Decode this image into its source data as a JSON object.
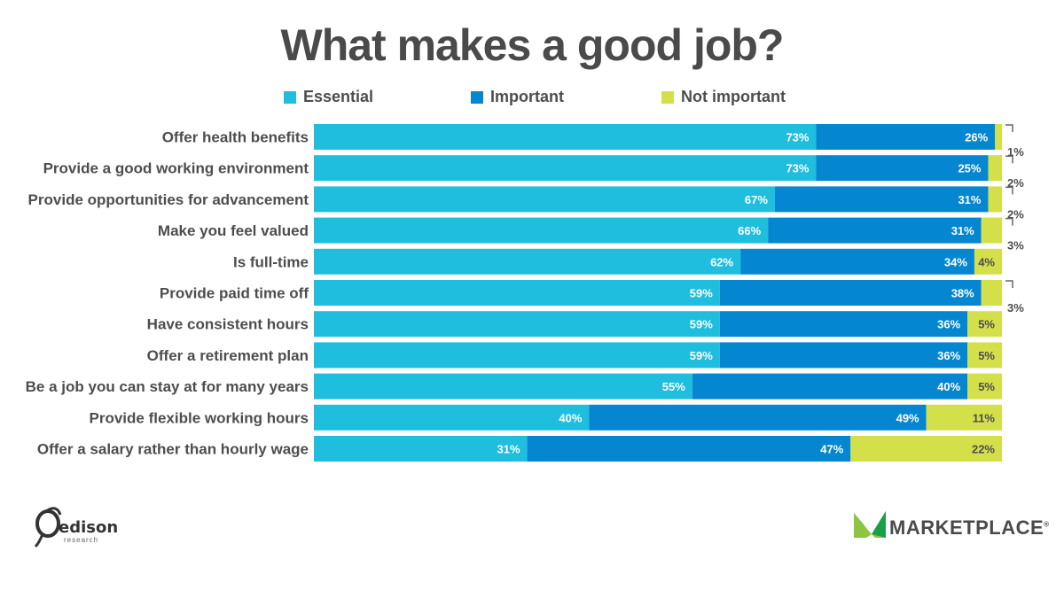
{
  "chart_data": {
    "type": "bar",
    "orientation": "horizontal",
    "stacked": true,
    "title": "What makes a good job?",
    "xlim": [
      0,
      100
    ],
    "categories": [
      "Offer health benefits",
      "Provide a good working environment",
      "Provide opportunities for advancement",
      "Make you feel valued",
      "Is full-time",
      "Provide paid time off",
      "Have consistent hours",
      "Offer a retirement plan",
      "Be a job you can stay at for many years",
      "Provide flexible working hours",
      "Offer a salary rather than hourly wage"
    ],
    "series": [
      {
        "name": "Essential",
        "color": "#1fbedf",
        "label_color": "#ffffff",
        "values": [
          73,
          73,
          67,
          66,
          62,
          59,
          59,
          59,
          55,
          40,
          31
        ],
        "labels": [
          "73%",
          "73%",
          "67%",
          "66%",
          "62%",
          "59%",
          "59%",
          "59%",
          "55%",
          "40%",
          "31%"
        ]
      },
      {
        "name": "Important",
        "color": "#0487d0",
        "label_color": "#ffffff",
        "values": [
          26,
          25,
          31,
          31,
          34,
          38,
          36,
          36,
          40,
          49,
          47
        ],
        "labels": [
          "26%",
          "25%",
          "31%",
          "31%",
          "34%",
          "38%",
          "36%",
          "36%",
          "40%",
          "49%",
          "47%"
        ]
      },
      {
        "name": "Not important",
        "color": "#d4e04a",
        "label_color": "#4d4d4d",
        "values": [
          1,
          2,
          2,
          3,
          4,
          3,
          5,
          5,
          5,
          11,
          22
        ],
        "labels": [
          "1%",
          "2%",
          "2%",
          "3%",
          "4%",
          "3%",
          "5%",
          "5%",
          "5%",
          "11%",
          "22%"
        ],
        "label_outside": [
          true,
          true,
          true,
          true,
          false,
          true,
          false,
          false,
          false,
          false,
          false
        ]
      }
    ]
  },
  "logos": {
    "edison": "edison",
    "edison_sub": "research",
    "marketplace": "MARKETPLACE",
    "marketplace_mark": "®"
  }
}
